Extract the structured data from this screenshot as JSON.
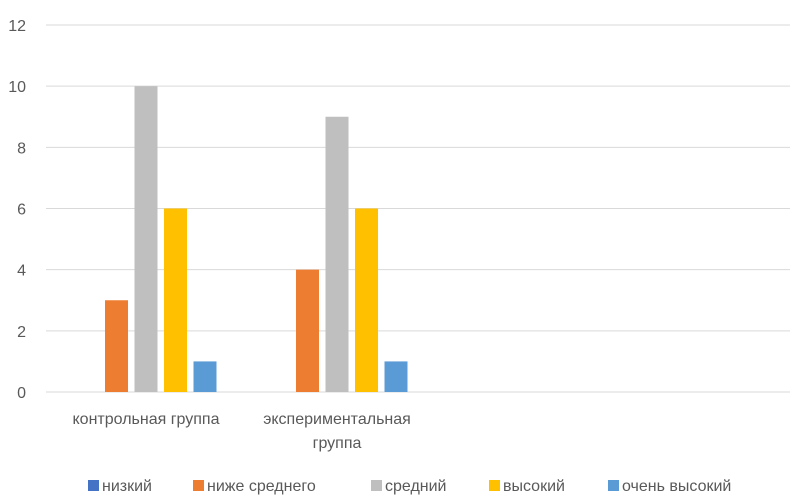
{
  "chart_data": {
    "type": "bar",
    "categories": [
      "контрольная группа",
      "экспериментальная группа"
    ],
    "category_label_lines": [
      [
        "контрольная группа"
      ],
      [
        "экспериментальная",
        "группа"
      ]
    ],
    "series": [
      {
        "name": "низкий",
        "color": "#4472C4",
        "values": [
          0,
          0
        ]
      },
      {
        "name": "ниже среднего",
        "color": "#ED7D31",
        "values": [
          3,
          4
        ]
      },
      {
        "name": "средний",
        "color": "#BFBFBF",
        "values": [
          10,
          9
        ]
      },
      {
        "name": "высокий",
        "color": "#FFC000",
        "values": [
          6,
          6
        ]
      },
      {
        "name": "очень высокий",
        "color": "#5B9BD5",
        "values": [
          1,
          1
        ]
      }
    ],
    "y_ticks": [
      "0",
      "2",
      "4",
      "6",
      "8",
      "10",
      "12"
    ],
    "ylim": [
      0,
      12
    ],
    "grid": true,
    "legend_position": "bottom",
    "title": "",
    "xlabel": "",
    "ylabel": ""
  }
}
